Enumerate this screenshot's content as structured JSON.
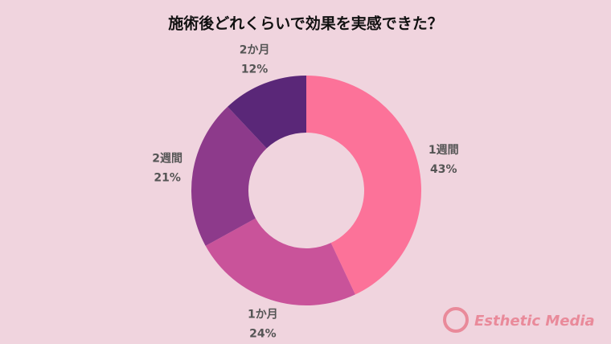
{
  "chart_data": {
    "type": "donut",
    "title": "施術後どれくらいで効果を実感できた？",
    "categories": [
      "1週間",
      "1か月",
      "2週間",
      "2か月"
    ],
    "values": [
      43,
      24,
      21,
      12
    ],
    "value_labels": [
      "43%",
      "24%",
      "21%",
      "12%"
    ],
    "colors": [
      "#fc7299",
      "#c9539a",
      "#8d3a8b",
      "#5a2778"
    ],
    "logo": "Esthetic Media"
  }
}
